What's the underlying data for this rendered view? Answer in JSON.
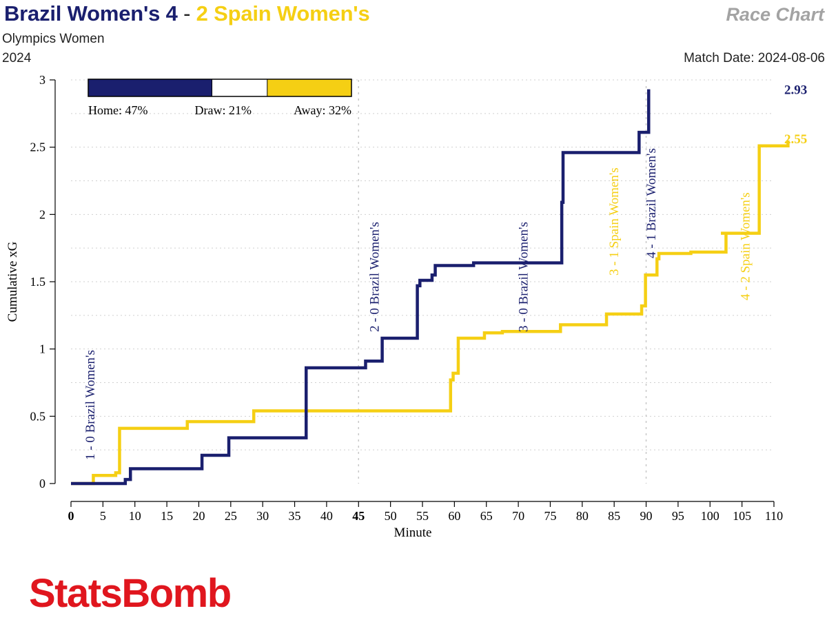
{
  "header": {
    "home_title": "Brazil Women's 4",
    "separator": "-",
    "away_title": "2 Spain Women's",
    "competition": "Olympics Women",
    "season": "2024",
    "chart_label": "Race Chart",
    "match_date": "Match Date: 2024-08-06"
  },
  "logo": {
    "text": "StatsBomb"
  },
  "colors": {
    "home": "#1a1f6e",
    "away": "#f5cf14",
    "logo": "#e0161e"
  },
  "win_probability": {
    "home_label": "Home: 47%",
    "draw_label": "Draw: 21%",
    "away_label": "Away: 32%",
    "home": 0.47,
    "draw": 0.21,
    "away": 0.32
  },
  "chart_data": {
    "type": "line",
    "title": "",
    "xlabel": "Minute",
    "ylabel": "Cumulative xG",
    "xlim": [
      0,
      110
    ],
    "ylim": [
      0,
      3
    ],
    "x_ticks": [
      0,
      5,
      10,
      15,
      20,
      25,
      30,
      35,
      40,
      45,
      50,
      55,
      60,
      65,
      70,
      75,
      80,
      85,
      90,
      95,
      100,
      105,
      110
    ],
    "y_ticks": [
      0,
      0.5,
      1,
      1.5,
      2,
      2.5,
      3
    ],
    "y_tick_labels": [
      "0",
      "0.5",
      "1",
      "1.5",
      "2",
      "2.5",
      "3"
    ],
    "vertical_guides": [
      45,
      90
    ],
    "series": [
      {
        "name": "Brazil Women's",
        "color": "#1a1f6e",
        "final_label": "2.93",
        "steps": [
          [
            0,
            0
          ],
          [
            8.5,
            0.03
          ],
          [
            9.3,
            0.11
          ],
          [
            20.5,
            0.21
          ],
          [
            24.7,
            0.34
          ],
          [
            36.8,
            0.86
          ],
          [
            46.1,
            0.91
          ],
          [
            48.7,
            1.08
          ],
          [
            54.2,
            1.47
          ],
          [
            54.6,
            1.51
          ],
          [
            56.5,
            1.55
          ],
          [
            57.0,
            1.62
          ],
          [
            63.0,
            1.64
          ],
          [
            76.8,
            2.09
          ],
          [
            77.0,
            2.46
          ],
          [
            88.9,
            2.61
          ],
          [
            90.4,
            2.93
          ]
        ],
        "end_x": 90.4
      },
      {
        "name": "Spain Women's",
        "color": "#f5cf14",
        "final_label": "2.55",
        "steps": [
          [
            0,
            0
          ],
          [
            3.5,
            0.06
          ],
          [
            7.0,
            0.08
          ],
          [
            7.6,
            0.41
          ],
          [
            18.2,
            0.46
          ],
          [
            28.6,
            0.54
          ],
          [
            59.4,
            0.77
          ],
          [
            59.8,
            0.82
          ],
          [
            60.6,
            1.08
          ],
          [
            64.7,
            1.12
          ],
          [
            67.5,
            1.13
          ],
          [
            76.6,
            1.18
          ],
          [
            83.8,
            1.26
          ],
          [
            89.3,
            1.32
          ],
          [
            89.9,
            1.55
          ],
          [
            91.7,
            1.67
          ],
          [
            92.0,
            1.71
          ],
          [
            97.0,
            1.72
          ],
          [
            102.5,
            1.86
          ],
          [
            101.7,
            1.86
          ],
          [
            107.7,
            2.51
          ],
          [
            112.2,
            2.55
          ]
        ],
        "end_x": 112.2
      }
    ],
    "goal_annotations": [
      {
        "label": "1 - 0 Brazil Women's",
        "minute": 3.0,
        "team": "home"
      },
      {
        "label": "2 - 0 Brazil Women's",
        "minute": 47.5,
        "team": "home"
      },
      {
        "label": "3 - 0 Brazil Women's",
        "minute": 70.8,
        "team": "home"
      },
      {
        "label": "3 - 1 Spain Women's",
        "minute": 85.0,
        "team": "away"
      },
      {
        "label": "4 - 1 Brazil Women's",
        "minute": 90.8,
        "team": "home"
      },
      {
        "label": "4 - 2 Spain Women's",
        "minute": 105.5,
        "team": "away"
      }
    ]
  }
}
